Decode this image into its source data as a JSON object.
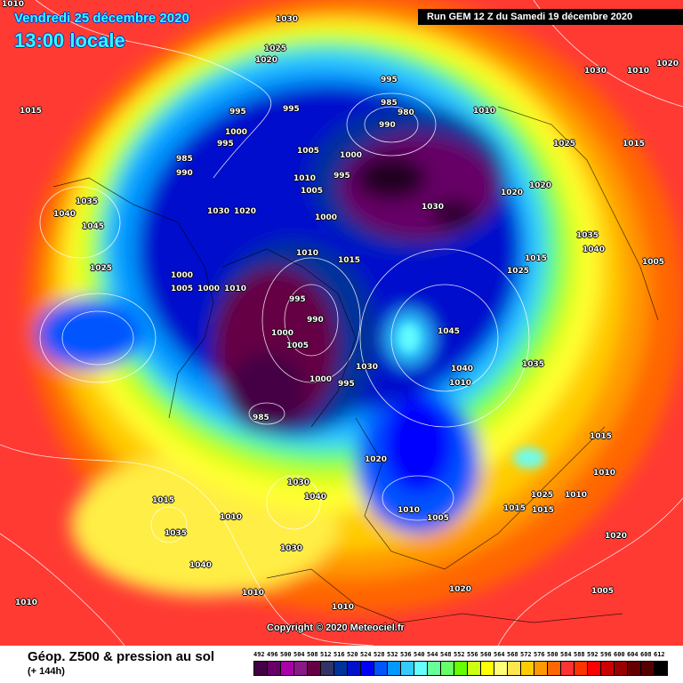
{
  "header": {
    "date": "Vendredi 25 décembre 2020",
    "time": "13:00 locale",
    "run": "Run GEM 12 Z du Samedi 19 décembre 2020"
  },
  "copyright": "Copyright © 2020 Meteociel.fr",
  "footer": {
    "title": "Géop. Z500 & pression au sol",
    "subtitle": "(+ 144h)"
  },
  "legend": {
    "labels": [
      "492",
      "496",
      "500",
      "504",
      "508",
      "512",
      "516",
      "520",
      "524",
      "528",
      "532",
      "536",
      "540",
      "544",
      "548",
      "552",
      "556",
      "560",
      "564",
      "568",
      "572",
      "576",
      "580",
      "584",
      "588",
      "592",
      "596",
      "600",
      "604",
      "608",
      "612"
    ],
    "colors": [
      "#440044",
      "#660066",
      "#aa00aa",
      "#881a88",
      "#660044",
      "#333366",
      "#003399",
      "#0011cc",
      "#0000ff",
      "#0055ff",
      "#0099ff",
      "#33ccff",
      "#66ffff",
      "#66ff99",
      "#66ff66",
      "#66ff00",
      "#ccff11",
      "#ffff00",
      "#ffff77",
      "#ffe64d",
      "#ffcc00",
      "#ff9900",
      "#ff6600",
      "#ff3333",
      "#ff3300",
      "#ff0000",
      "#cc0000",
      "#990000",
      "#660000",
      "#550000",
      "#000000"
    ]
  },
  "pressure_labels": [
    "1010",
    "1015",
    "1030",
    "1025",
    "1020",
    "995",
    "985",
    "980",
    "990",
    "995",
    "1000",
    "995",
    "995",
    "1010",
    "1025",
    "1015",
    "1020",
    "1020",
    "1030",
    "1005",
    "1000",
    "1010",
    "1005",
    "990",
    "985",
    "995",
    "1000",
    "1035",
    "1040",
    "1045",
    "1025",
    "1030",
    "1020",
    "1010",
    "1000",
    "1005",
    "995",
    "990",
    "1000",
    "1010",
    "1015",
    "1030",
    "1010",
    "1035",
    "1040",
    "1020",
    "1030",
    "1000",
    "995",
    "1005",
    "985",
    "1045",
    "1040",
    "1035",
    "1010",
    "1040",
    "1030",
    "1015",
    "1010",
    "1035",
    "1040",
    "1030",
    "1025",
    "1015",
    "1015",
    "1010",
    "1020",
    "1005",
    "1010",
    "1025",
    "1000",
    "1015",
    "1020",
    "1010",
    "1010",
    "1005",
    "1020",
    "1010",
    "1005",
    "1015",
    "1010"
  ]
}
